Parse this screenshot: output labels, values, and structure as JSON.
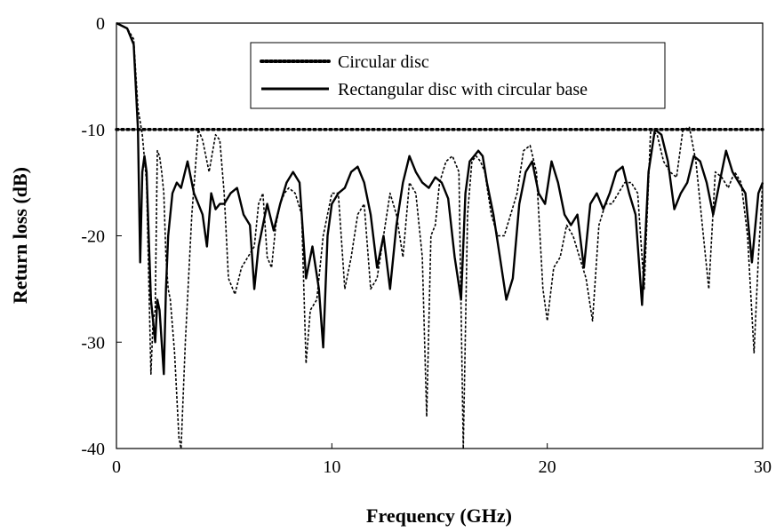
{
  "chart_data": {
    "type": "line",
    "title": "",
    "xlabel": "Frequency (GHz)",
    "ylabel": "Return loss (dB)",
    "xlim": [
      0,
      30
    ],
    "ylim": [
      -40,
      0
    ],
    "xticks": [
      0,
      10,
      20,
      30
    ],
    "yticks": [
      0,
      -10,
      -20,
      -30,
      -40
    ],
    "grid": false,
    "legend": "top-center",
    "series": [
      {
        "name": "Circular disc",
        "style": "dotted",
        "x": [
          0,
          0.5,
          0.8,
          1.0,
          1.2,
          1.4,
          1.6,
          1.7,
          1.8,
          1.9,
          2.0,
          2.1,
          2.2,
          2.3,
          2.4,
          2.5,
          2.7,
          2.9,
          3.0,
          3.2,
          3.5,
          3.8,
          4.0,
          4.3,
          4.6,
          4.8,
          5.0,
          5.2,
          5.5,
          5.8,
          6.1,
          6.4,
          6.6,
          6.8,
          7.0,
          7.2,
          7.4,
          7.6,
          7.8,
          8.0,
          8.3,
          8.6,
          8.8,
          9.0,
          9.3,
          9.6,
          10.0,
          10.3,
          10.6,
          10.9,
          11.2,
          11.5,
          11.8,
          12.1,
          12.4,
          12.7,
          13.0,
          13.3,
          13.6,
          13.9,
          14.2,
          14.4,
          14.6,
          14.8,
          15.0,
          15.3,
          15.6,
          15.9,
          16.1,
          16.3,
          16.5,
          16.7,
          16.9,
          17.1,
          17.4,
          17.7,
          18.0,
          18.3,
          18.6,
          18.9,
          19.2,
          19.5,
          19.8,
          20.0,
          20.3,
          20.6,
          20.9,
          21.2,
          21.5,
          21.8,
          22.1,
          22.4,
          22.7,
          23.0,
          23.3,
          23.6,
          23.9,
          24.2,
          24.5,
          24.8,
          25.1,
          25.4,
          25.7,
          26.0,
          26.3,
          26.6,
          26.9,
          27.2,
          27.5,
          27.8,
          28.1,
          28.4,
          28.7,
          29.0,
          29.3,
          29.6,
          29.8,
          30.0
        ],
        "values": [
          0,
          -0.5,
          -1.5,
          -8,
          -10.5,
          -15,
          -33,
          -28,
          -27,
          -12,
          -12.5,
          -14,
          -16,
          -22,
          -25,
          -26,
          -31,
          -39,
          -40,
          -30,
          -18,
          -10,
          -11,
          -14,
          -10.5,
          -11,
          -16,
          -24,
          -25.5,
          -23,
          -22,
          -21,
          -17,
          -16,
          -22,
          -23,
          -19,
          -17,
          -16,
          -15.5,
          -16,
          -18,
          -32,
          -27,
          -26,
          -20,
          -16,
          -16,
          -25,
          -22,
          -18,
          -17,
          -25,
          -24,
          -20,
          -16,
          -18,
          -22,
          -15,
          -16,
          -22,
          -37,
          -20,
          -19,
          -15,
          -13,
          -12.5,
          -14,
          -40,
          -18,
          -13,
          -12.5,
          -13,
          -14,
          -18,
          -20,
          -20,
          -18,
          -16,
          -12,
          -11.5,
          -14,
          -25,
          -28,
          -23,
          -22,
          -19,
          -20,
          -22,
          -24,
          -28,
          -19,
          -17,
          -17,
          -16,
          -15,
          -15,
          -16,
          -25,
          -10,
          -10.5,
          -13,
          -14,
          -14.5,
          -10,
          -9.8,
          -13,
          -19,
          -25,
          -14,
          -14.5,
          -15.5,
          -14,
          -15,
          -20,
          -31,
          -22,
          -15
        ]
      },
      {
        "name": "Rectangular disc with circular base",
        "style": "solid",
        "x": [
          0,
          0.5,
          0.8,
          1.0,
          1.1,
          1.2,
          1.3,
          1.4,
          1.5,
          1.6,
          1.7,
          1.8,
          1.9,
          2.0,
          2.1,
          2.2,
          2.3,
          2.4,
          2.6,
          2.8,
          3.0,
          3.3,
          3.6,
          3.8,
          4.0,
          4.2,
          4.4,
          4.6,
          4.8,
          5.0,
          5.3,
          5.6,
          5.9,
          6.2,
          6.4,
          6.6,
          6.8,
          7.0,
          7.3,
          7.6,
          7.9,
          8.2,
          8.5,
          8.8,
          9.1,
          9.4,
          9.6,
          9.8,
          10.0,
          10.3,
          10.6,
          10.9,
          11.2,
          11.5,
          11.8,
          12.1,
          12.4,
          12.7,
          13.0,
          13.3,
          13.6,
          13.9,
          14.2,
          14.5,
          14.8,
          15.1,
          15.4,
          15.7,
          16.0,
          16.2,
          16.4,
          16.6,
          16.8,
          17.0,
          17.2,
          17.5,
          17.8,
          18.1,
          18.4,
          18.7,
          19.0,
          19.3,
          19.6,
          19.9,
          20.2,
          20.5,
          20.8,
          21.1,
          21.4,
          21.7,
          22.0,
          22.3,
          22.6,
          22.9,
          23.2,
          23.5,
          23.8,
          24.1,
          24.4,
          24.7,
          25.0,
          25.3,
          25.6,
          25.9,
          26.2,
          26.5,
          26.8,
          27.1,
          27.4,
          27.7,
          28.0,
          28.3,
          28.6,
          28.9,
          29.2,
          29.5,
          29.8,
          30.0
        ],
        "values": [
          0,
          -0.5,
          -2,
          -10,
          -22.5,
          -14,
          -12.5,
          -14,
          -20,
          -26,
          -28,
          -30,
          -26,
          -27,
          -30,
          -33,
          -25,
          -20,
          -16,
          -15,
          -15.5,
          -13,
          -16,
          -17,
          -18,
          -21,
          -16,
          -17.5,
          -17,
          -17,
          -16,
          -15.5,
          -18,
          -19,
          -25,
          -21,
          -19,
          -17,
          -19.5,
          -17,
          -15,
          -14,
          -15,
          -24,
          -21,
          -25,
          -30.5,
          -20,
          -17,
          -16,
          -15.5,
          -14,
          -13.5,
          -15,
          -18,
          -23,
          -20,
          -25,
          -19,
          -15,
          -12.5,
          -14,
          -15,
          -15.5,
          -14.5,
          -15,
          -16.5,
          -22,
          -26,
          -16,
          -13,
          -12.5,
          -12,
          -12.5,
          -15,
          -18,
          -22,
          -26,
          -24,
          -17,
          -14,
          -13,
          -16,
          -17,
          -13,
          -15,
          -18,
          -19,
          -18,
          -23,
          -17,
          -16,
          -17.5,
          -16,
          -14,
          -13.5,
          -16,
          -18,
          -26.5,
          -14,
          -10,
          -10.5,
          -13,
          -17.5,
          -16,
          -15,
          -12.5,
          -13,
          -15,
          -18,
          -15,
          -12,
          -14,
          -15,
          -16,
          -22.5,
          -16,
          -15
        ]
      }
    ]
  }
}
